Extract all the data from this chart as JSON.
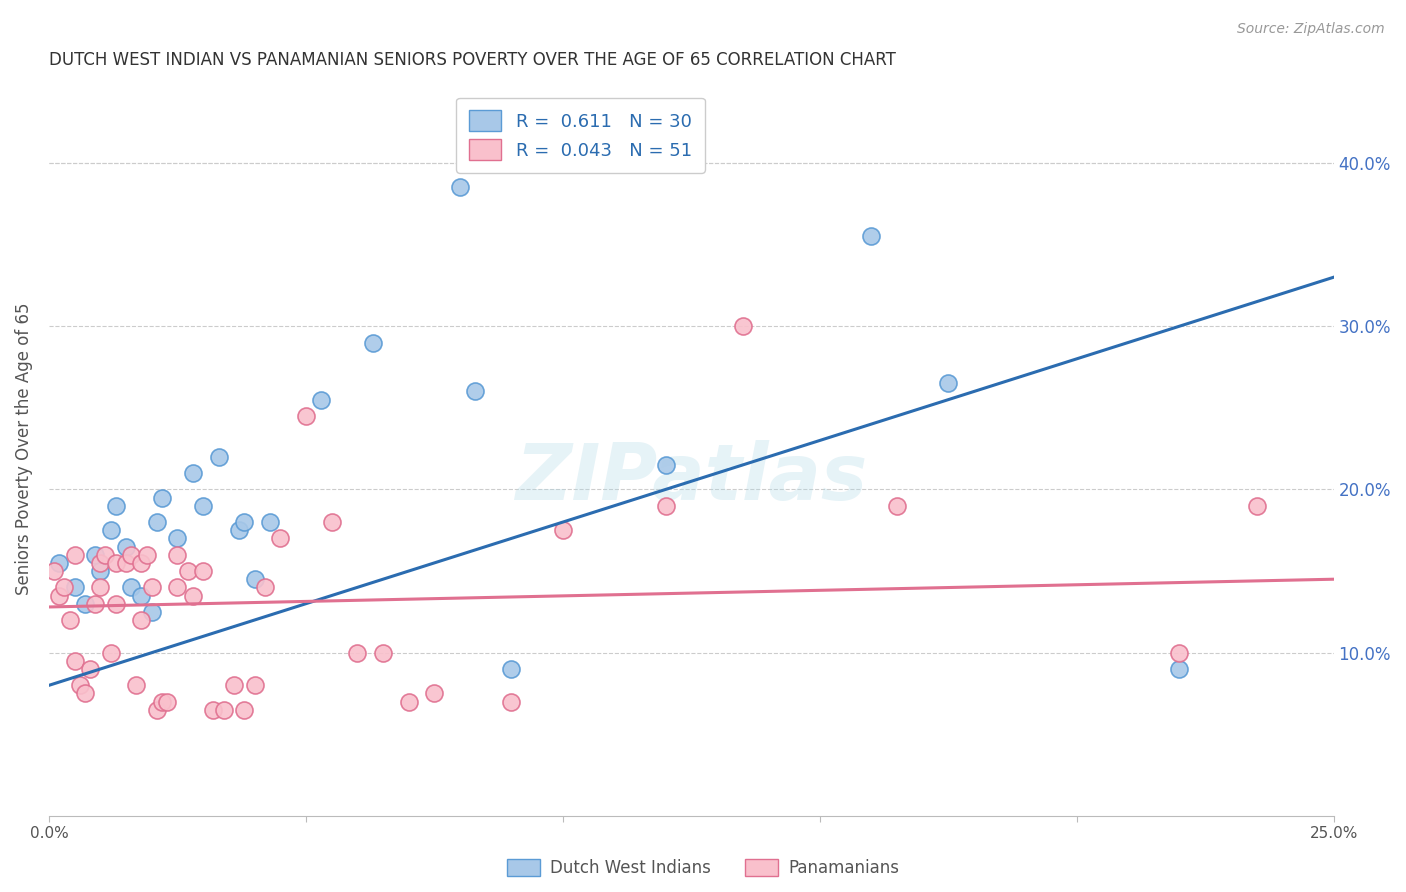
{
  "title": "DUTCH WEST INDIAN VS PANAMANIAN SENIORS POVERTY OVER THE AGE OF 65 CORRELATION CHART",
  "source": "Source: ZipAtlas.com",
  "ylabel": "Seniors Poverty Over the Age of 65",
  "xlim": [
    0.0,
    0.25
  ],
  "ylim": [
    0.0,
    0.45
  ],
  "yticks": [
    0.1,
    0.2,
    0.3,
    0.4
  ],
  "ytick_labels": [
    "10.0%",
    "20.0%",
    "30.0%",
    "40.0%"
  ],
  "xticks": [
    0.0,
    0.05,
    0.1,
    0.15,
    0.2,
    0.25
  ],
  "xtick_labels": [
    "0.0%",
    "",
    "",
    "",
    "",
    "25.0%"
  ],
  "blue_scatter_x": [
    0.002,
    0.005,
    0.007,
    0.009,
    0.01,
    0.012,
    0.013,
    0.015,
    0.016,
    0.018,
    0.02,
    0.021,
    0.022,
    0.025,
    0.028,
    0.03,
    0.033,
    0.037,
    0.038,
    0.04,
    0.043,
    0.053,
    0.063,
    0.08,
    0.083,
    0.09,
    0.12,
    0.16,
    0.175,
    0.22
  ],
  "blue_scatter_y": [
    0.155,
    0.14,
    0.13,
    0.16,
    0.15,
    0.175,
    0.19,
    0.165,
    0.14,
    0.135,
    0.125,
    0.18,
    0.195,
    0.17,
    0.21,
    0.19,
    0.22,
    0.175,
    0.18,
    0.145,
    0.18,
    0.255,
    0.29,
    0.385,
    0.26,
    0.09,
    0.215,
    0.355,
    0.265,
    0.09
  ],
  "pink_scatter_x": [
    0.001,
    0.002,
    0.003,
    0.004,
    0.005,
    0.005,
    0.006,
    0.007,
    0.008,
    0.009,
    0.01,
    0.01,
    0.011,
    0.012,
    0.013,
    0.013,
    0.015,
    0.016,
    0.017,
    0.018,
    0.018,
    0.019,
    0.02,
    0.021,
    0.022,
    0.023,
    0.025,
    0.025,
    0.027,
    0.028,
    0.03,
    0.032,
    0.034,
    0.036,
    0.038,
    0.04,
    0.042,
    0.045,
    0.05,
    0.055,
    0.06,
    0.065,
    0.07,
    0.075,
    0.09,
    0.1,
    0.12,
    0.135,
    0.165,
    0.22,
    0.235
  ],
  "pink_scatter_y": [
    0.15,
    0.135,
    0.14,
    0.12,
    0.095,
    0.16,
    0.08,
    0.075,
    0.09,
    0.13,
    0.155,
    0.14,
    0.16,
    0.1,
    0.155,
    0.13,
    0.155,
    0.16,
    0.08,
    0.155,
    0.12,
    0.16,
    0.14,
    0.065,
    0.07,
    0.07,
    0.16,
    0.14,
    0.15,
    0.135,
    0.15,
    0.065,
    0.065,
    0.08,
    0.065,
    0.08,
    0.14,
    0.17,
    0.245,
    0.18,
    0.1,
    0.1,
    0.07,
    0.075,
    0.07,
    0.175,
    0.19,
    0.3,
    0.19,
    0.1,
    0.19
  ],
  "blue_line_x": [
    0.0,
    0.25
  ],
  "blue_line_y": [
    0.08,
    0.33
  ],
  "pink_line_x": [
    0.0,
    0.25
  ],
  "pink_line_y": [
    0.128,
    0.145
  ],
  "blue_scatter_color": "#a8c8e8",
  "blue_scatter_edge": "#5b9bd5",
  "pink_scatter_color": "#f9c0cc",
  "pink_scatter_edge": "#e07090",
  "blue_line_color": "#2b6cb0",
  "pink_line_color": "#e07090",
  "legend_text_color": "#2b6cb0",
  "watermark": "ZIPatlas",
  "background_color": "#ffffff",
  "grid_color": "#cccccc",
  "title_color": "#333333",
  "axis_label_color": "#555555"
}
